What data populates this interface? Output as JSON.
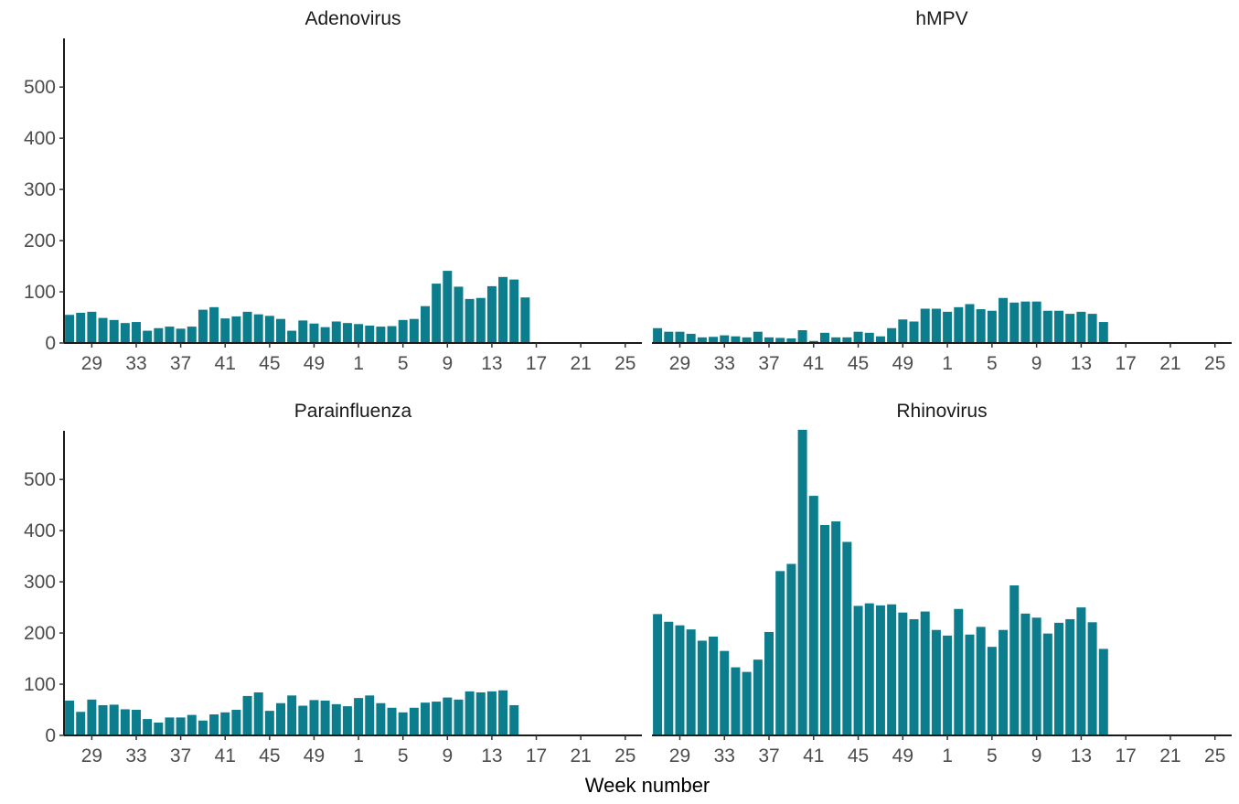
{
  "chart_data": {
    "type": "bar",
    "facet": "2x2",
    "xlabel": "Week number",
    "ylabel": "",
    "ylim": [
      0,
      595
    ],
    "y_ticks": [
      0,
      100,
      200,
      300,
      400,
      500
    ],
    "x_tick_labels": [
      "29",
      "33",
      "37",
      "41",
      "45",
      "49",
      "1",
      "5",
      "9",
      "13",
      "17",
      "21",
      "25"
    ],
    "weeks": [
      27,
      28,
      29,
      30,
      31,
      32,
      33,
      34,
      35,
      36,
      37,
      38,
      39,
      40,
      41,
      42,
      43,
      44,
      45,
      46,
      47,
      48,
      49,
      50,
      51,
      52,
      1,
      2,
      3,
      4,
      5,
      6,
      7,
      8,
      9,
      10,
      11,
      12,
      13,
      14,
      15,
      16,
      17,
      18,
      19,
      20,
      21,
      22,
      23,
      24,
      25,
      26
    ],
    "bar_color": "#0b7d8c",
    "grid": false,
    "panels": [
      {
        "title": "Adenovirus",
        "values": [
          55,
          59,
          61,
          49,
          45,
          39,
          41,
          24,
          29,
          32,
          28,
          32,
          65,
          70,
          48,
          52,
          61,
          56,
          53,
          47,
          24,
          44,
          38,
          31,
          42,
          39,
          37,
          34,
          32,
          33,
          45,
          47,
          72,
          116,
          141,
          110,
          86,
          88,
          111,
          129,
          124,
          89,
          null,
          null,
          null,
          null,
          null,
          null,
          null,
          null,
          null,
          null
        ]
      },
      {
        "title": "hMPV",
        "values": [
          29,
          22,
          22,
          18,
          11,
          12,
          15,
          13,
          11,
          22,
          11,
          10,
          9,
          25,
          4,
          20,
          11,
          11,
          22,
          20,
          13,
          29,
          46,
          42,
          67,
          67,
          61,
          70,
          76,
          66,
          63,
          88,
          79,
          81,
          81,
          63,
          63,
          57,
          61,
          57,
          41,
          null,
          null,
          null,
          null,
          null,
          null,
          null,
          null,
          null,
          null,
          null
        ]
      },
      {
        "title": "Parainfluenza",
        "values": [
          68,
          46,
          70,
          59,
          60,
          51,
          50,
          32,
          25,
          35,
          35,
          40,
          29,
          41,
          45,
          50,
          77,
          84,
          48,
          63,
          78,
          58,
          69,
          68,
          61,
          57,
          73,
          78,
          63,
          54,
          45,
          54,
          64,
          66,
          74,
          70,
          86,
          84,
          86,
          88,
          59,
          null,
          null,
          null,
          null,
          null,
          null,
          null,
          null,
          null,
          null,
          null
        ]
      },
      {
        "title": "Rhinovirus",
        "values": [
          237,
          222,
          215,
          207,
          185,
          193,
          165,
          133,
          124,
          148,
          202,
          321,
          335,
          597,
          468,
          411,
          418,
          378,
          253,
          258,
          254,
          256,
          240,
          227,
          242,
          206,
          195,
          247,
          197,
          212,
          173,
          206,
          293,
          238,
          230,
          199,
          220,
          227,
          250,
          221,
          169,
          null,
          null,
          null,
          null,
          null,
          null,
          null,
          null,
          null,
          null,
          null
        ]
      }
    ]
  }
}
